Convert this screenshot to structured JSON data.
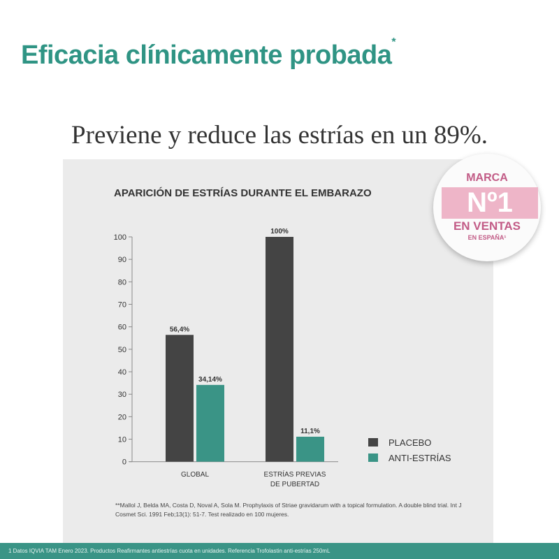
{
  "header": {
    "title": "Eficacia clínicamente probada",
    "title_mark": "*",
    "subtitle": "Previene y reduce las estrías en un 89%."
  },
  "badge": {
    "line1": "MARCA",
    "line2": "Nº1",
    "line3": "EN VENTAS",
    "line4": "EN ESPAÑA¹"
  },
  "reference": "**Mallol J, Belda MA, Costa D, Noval A, Sola M. Prophylaxis of Striae gravidarum with a topical formulation. A double blind trial. Int J Cosmet Sci. 1991 Feb;13(1): 51-7. Test realizado en 100 mujeres.",
  "footer": "1 Datos IQVIA TAM Enero 2023. Productos Reafirmantes antiestrías cuota en unidades. Referencia Trofolastin anti-estrías 250mL",
  "chart_data": {
    "type": "bar",
    "title": "APARICIÓN DE ESTRÍAS DURANTE EL EMBARAZO",
    "categories": [
      "GLOBAL",
      "ESTRÍAS PREVIAS DE PUBERTAD"
    ],
    "category_lines": [
      [
        "GLOBAL"
      ],
      [
        "ESTRÍAS PREVIAS",
        "DE PUBERTAD"
      ]
    ],
    "series": [
      {
        "name": "PLACEBO",
        "values": [
          56.4,
          100
        ],
        "labels": [
          "56,4%",
          "100%"
        ],
        "color": "#444444"
      },
      {
        "name": "ANTI-ESTRÍAS",
        "values": [
          34.14,
          11.1
        ],
        "labels": [
          "34,14%",
          "11,1%"
        ],
        "color": "#3a9486"
      }
    ],
    "yticks": [
      0,
      10,
      20,
      30,
      40,
      50,
      60,
      70,
      80,
      90,
      100
    ],
    "ylim": [
      0,
      100
    ],
    "grid": false,
    "legend": "bottom-right"
  }
}
